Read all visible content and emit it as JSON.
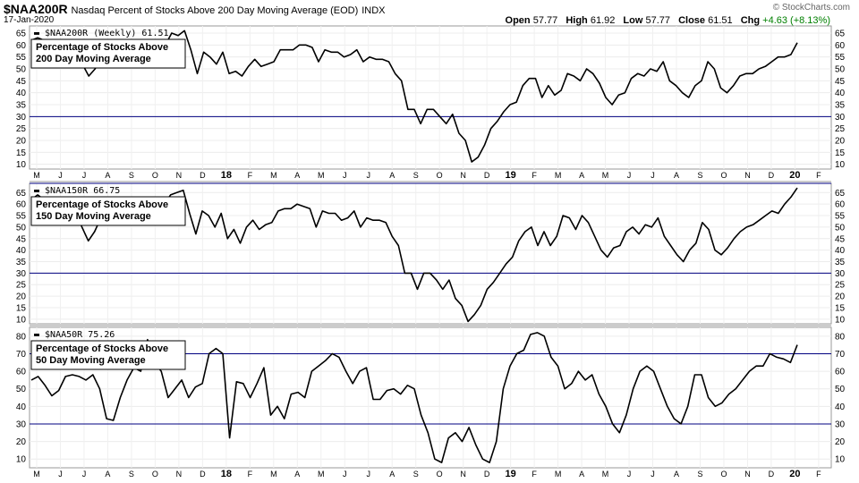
{
  "header": {
    "symbol": "$NAA200R",
    "description": "Nasdaq Percent of Stocks Above 200 Day Moving Average (EOD)",
    "exchange": "INDX",
    "date": "17-Jan-2020",
    "brand": "© StockCharts.com",
    "open_label": "Open",
    "open": "57.77",
    "high_label": "High",
    "high": "61.92",
    "low_label": "Low",
    "low": "57.77",
    "close_label": "Close",
    "close": "61.51",
    "chg_label": "Chg",
    "chg": "+4.63 (+8.13%)",
    "chg_color": "#008000"
  },
  "x_axis": {
    "labels": [
      "M",
      "J",
      "J",
      "A",
      "S",
      "O",
      "N",
      "D",
      "18",
      "F",
      "M",
      "A",
      "M",
      "J",
      "J",
      "A",
      "S",
      "O",
      "N",
      "D",
      "19",
      "F",
      "M",
      "A",
      "M",
      "J",
      "J",
      "A",
      "S",
      "O",
      "N",
      "D",
      "20",
      "F"
    ],
    "bold": [
      "18",
      "19",
      "20"
    ]
  },
  "chart_data": [
    {
      "type": "line",
      "name": "panel-200",
      "label": "$NAA200R (Weekly) 61.51",
      "box_lines": [
        "Percentage of Stocks Above",
        "200 Day Moving Average"
      ],
      "ylim": [
        8,
        68
      ],
      "ticks": [
        10,
        15,
        20,
        25,
        30,
        35,
        40,
        45,
        50,
        55,
        60,
        65
      ],
      "hlines": [
        30
      ],
      "values": [
        62,
        63,
        62,
        59,
        55,
        58,
        54,
        57,
        52,
        47,
        50,
        55,
        58,
        59,
        57,
        54,
        58,
        59,
        58,
        60,
        58,
        60,
        65,
        64,
        66,
        58,
        48,
        57,
        55,
        52,
        57,
        48,
        49,
        47,
        51,
        54,
        51,
        52,
        53,
        58,
        58,
        58,
        60,
        60,
        59,
        53,
        58,
        57,
        57,
        55,
        56,
        58,
        53,
        55,
        54,
        54,
        53,
        48,
        45,
        33,
        33,
        27,
        33,
        33,
        30,
        27,
        31,
        23,
        20,
        11,
        13,
        18,
        25,
        28,
        32,
        35,
        36,
        43,
        46,
        46,
        38,
        43,
        39,
        41,
        48,
        47,
        45,
        50,
        48,
        44,
        38,
        35,
        39,
        40,
        46,
        48,
        47,
        50,
        49,
        53,
        45,
        43,
        40,
        38,
        43,
        45,
        53,
        50,
        42,
        40,
        43,
        47,
        48,
        48,
        50,
        51,
        53,
        55,
        55,
        56,
        61
      ]
    },
    {
      "type": "line",
      "name": "panel-150",
      "label": "$NAA150R 66.75",
      "box_lines": [
        "Percentage of Stocks Above",
        "150 Day Moving Average"
      ],
      "ylim": [
        8,
        69
      ],
      "ticks": [
        10,
        15,
        20,
        25,
        30,
        35,
        40,
        45,
        50,
        55,
        60,
        65
      ],
      "hlines": [
        30,
        69
      ],
      "values": [
        62,
        64,
        62,
        58,
        55,
        59,
        52,
        57,
        50,
        44,
        48,
        54,
        57,
        58,
        56,
        52,
        57,
        60,
        59,
        60,
        58,
        60,
        64,
        65,
        66,
        56,
        47,
        57,
        55,
        50,
        56,
        45,
        49,
        43,
        50,
        53,
        49,
        51,
        52,
        57,
        58,
        58,
        60,
        59,
        58,
        50,
        57,
        56,
        56,
        53,
        54,
        57,
        50,
        54,
        53,
        53,
        52,
        46,
        42,
        30,
        30,
        23,
        30,
        30,
        27,
        23,
        27,
        19,
        16,
        9,
        12,
        16,
        23,
        26,
        30,
        34,
        37,
        44,
        48,
        50,
        42,
        48,
        42,
        46,
        55,
        54,
        49,
        55,
        52,
        46,
        40,
        37,
        41,
        42,
        48,
        50,
        47,
        51,
        50,
        54,
        46,
        42,
        38,
        35,
        40,
        43,
        52,
        49,
        40,
        38,
        41,
        45,
        48,
        50,
        51,
        53,
        55,
        57,
        56,
        60,
        63,
        67
      ]
    },
    {
      "type": "line",
      "name": "panel-50",
      "label": "$NAA50R 75.26",
      "box_lines": [
        "Percentage of Stocks Above",
        "50 Day Moving Average"
      ],
      "ylim": [
        5,
        85
      ],
      "ticks": [
        10,
        20,
        30,
        40,
        50,
        60,
        70,
        80
      ],
      "hlines": [
        30,
        70
      ],
      "values": [
        55,
        57,
        52,
        46,
        49,
        57,
        58,
        57,
        55,
        58,
        50,
        33,
        32,
        45,
        55,
        62,
        60,
        78,
        65,
        60,
        45,
        50,
        55,
        45,
        51,
        53,
        70,
        73,
        70,
        22,
        54,
        53,
        45,
        53,
        62,
        35,
        40,
        33,
        47,
        48,
        45,
        60,
        63,
        66,
        70,
        68,
        60,
        53,
        60,
        62,
        44,
        44,
        49,
        50,
        47,
        52,
        50,
        35,
        25,
        10,
        8,
        22,
        25,
        20,
        28,
        18,
        10,
        8,
        20,
        50,
        63,
        70,
        72,
        81,
        82,
        80,
        68,
        63,
        50,
        53,
        60,
        55,
        58,
        47,
        40,
        30,
        25,
        35,
        50,
        60,
        63,
        60,
        50,
        40,
        33,
        30,
        40,
        58,
        58,
        45,
        40,
        42,
        47,
        50,
        55,
        60,
        63,
        63,
        70,
        68,
        67,
        65,
        75
      ]
    }
  ]
}
